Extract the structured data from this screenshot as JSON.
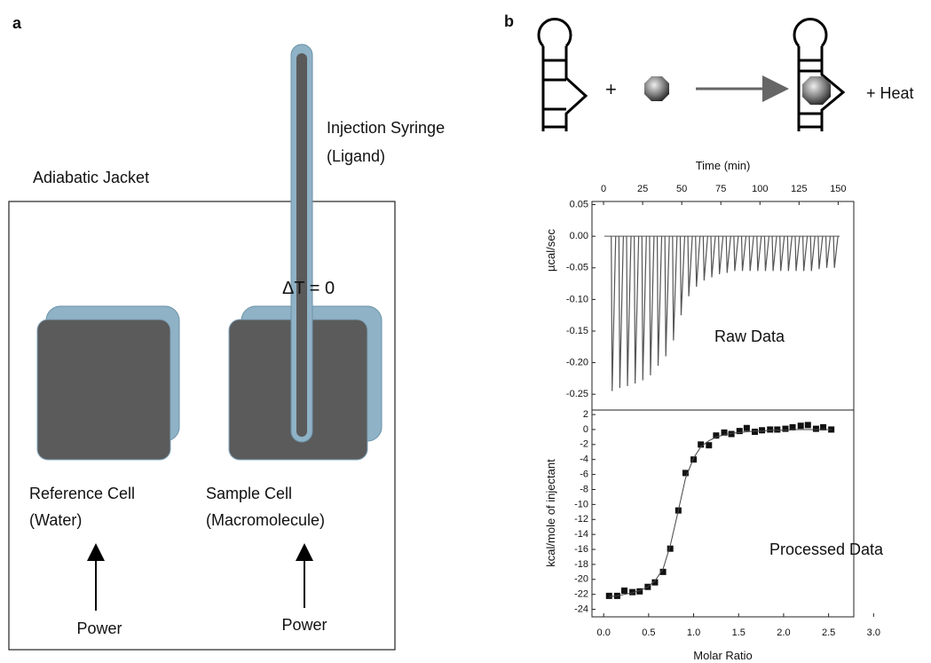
{
  "panel_a": {
    "label": "a",
    "jacket": "Adiabatic Jacket",
    "syringe": [
      "Injection Syringe",
      "(Ligand)"
    ],
    "delta": "ΔT = 0",
    "reference": [
      "Reference Cell",
      "(Water)"
    ],
    "sample": [
      "Sample Cell",
      "(Macromolecule)"
    ],
    "power": [
      "Power",
      "Power"
    ]
  },
  "panel_b": {
    "label": "b",
    "plus": "+",
    "heat": "+ Heat"
  },
  "chart_data": [
    {
      "type": "spike",
      "xlabel": "Time (min)",
      "ylabel": "µcal/sec",
      "annotation": "Raw Data",
      "color": "#555555",
      "x": [
        5.5,
        10.4,
        15.3,
        20.2,
        25.1,
        30.0,
        34.9,
        39.8,
        44.7,
        49.6,
        54.5,
        59.4,
        64.3,
        69.2,
        74.1,
        79.0,
        83.9,
        88.8,
        93.7,
        98.6,
        103.5,
        108.4,
        113.3,
        118.2,
        123.1,
        128.0,
        132.9,
        137.8,
        142.7,
        147.6
      ],
      "values": [
        -0.245,
        -0.24,
        -0.237,
        -0.233,
        -0.228,
        -0.22,
        -0.205,
        -0.19,
        -0.165,
        -0.125,
        -0.095,
        -0.08,
        -0.07,
        -0.065,
        -0.06,
        -0.058,
        -0.055,
        -0.055,
        -0.055,
        -0.055,
        -0.055,
        -0.055,
        -0.055,
        -0.055,
        -0.055,
        -0.055,
        -0.055,
        -0.052,
        -0.05,
        -0.05
      ],
      "xlim": [
        -7.4,
        160
      ],
      "xticks": [
        0,
        25,
        50,
        75,
        100,
        125,
        150
      ],
      "ylim": [
        -0.275,
        0.055
      ],
      "yticks": [
        0.05,
        {
          "value": 0,
          "label": "0.00"
        },
        -0.05,
        {
          "value": -0.1,
          "label": "-0.10"
        },
        -0.15,
        {
          "value": -0.2,
          "label": "-0.20"
        },
        -0.25
      ]
    },
    {
      "type": "scatter",
      "xlabel": "Molar Ratio",
      "ylabel": "kcal/mole of injectant",
      "annotation": "Processed Data",
      "x": [
        0.06,
        0.15,
        0.23,
        0.32,
        0.4,
        0.49,
        0.57,
        0.66,
        0.74,
        0.83,
        0.91,
        1.0,
        1.08,
        1.17,
        1.25,
        1.34,
        1.42,
        1.51,
        1.59,
        1.68,
        1.76,
        1.85,
        1.93,
        2.02,
        2.1,
        2.19,
        2.27,
        2.36,
        2.44,
        2.53
      ],
      "series": [
        {
          "color": "#111111",
          "marker": "square",
          "values": [
            -22.2,
            -22.2,
            -21.5,
            -21.7,
            -21.6,
            -21.0,
            -20.4,
            -19.0,
            -15.9,
            -10.8,
            -5.8,
            -4.0,
            -2.0,
            -2.1,
            -0.8,
            -0.4,
            -0.6,
            -0.2,
            0.2,
            -0.3,
            -0.1,
            0.0,
            0.0,
            0.1,
            0.3,
            0.5,
            0.6,
            0.1,
            0.3,
            0.0
          ]
        },
        {
          "color": "#444444",
          "marker": "line",
          "values": [
            -22.3,
            -22.2,
            -22.0,
            -21.8,
            -21.5,
            -21.0,
            -20.2,
            -18.6,
            -15.5,
            -10.8,
            -6.5,
            -3.8,
            -2.3,
            -1.5,
            -1.0,
            -0.7,
            -0.5,
            -0.4,
            -0.3,
            -0.2,
            -0.2,
            -0.1,
            -0.1,
            -0.1,
            0,
            0,
            0,
            0,
            0,
            0
          ]
        }
      ],
      "xlim": [
        -0.13,
        2.78
      ],
      "xticks": [
        {
          "value": 0,
          "label": "0.0"
        },
        0.5,
        {
          "value": 1,
          "label": "1.0"
        },
        1.5,
        {
          "value": 2,
          "label": "2.0"
        },
        2.5,
        {
          "value": 3,
          "label": "3.0"
        }
      ],
      "ylim": [
        -25,
        2.6
      ],
      "yticks": [
        2,
        0,
        -2,
        -4,
        -6,
        -8,
        -10,
        -12,
        -14,
        -16,
        -18,
        -20,
        -22,
        -24
      ]
    }
  ]
}
